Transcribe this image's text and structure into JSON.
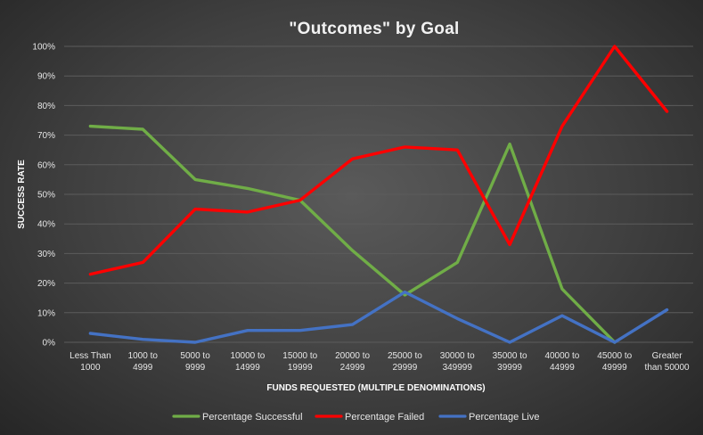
{
  "chart_data": {
    "type": "line",
    "title": "\"Outcomes\"  by Goal",
    "xlabel": "FUNDS REQUESTED (MULTIPLE DENOMINATIONS)",
    "ylabel": "SUCCESS RATE",
    "ylim": [
      0,
      100
    ],
    "y_ticks": [
      "0%",
      "10%",
      "20%",
      "30%",
      "40%",
      "50%",
      "60%",
      "70%",
      "80%",
      "90%",
      "100%"
    ],
    "grid": true,
    "legend_position": "bottom",
    "categories": [
      [
        "Less Than",
        "1000"
      ],
      [
        "1000 to",
        "4999"
      ],
      [
        "5000 to",
        "9999"
      ],
      [
        "10000 to",
        "14999"
      ],
      [
        "15000 to",
        "19999"
      ],
      [
        "20000 to",
        "24999"
      ],
      [
        "25000 to",
        "29999"
      ],
      [
        "30000 to",
        "349999"
      ],
      [
        "35000 to",
        "39999"
      ],
      [
        "40000 to",
        "44999"
      ],
      [
        "45000 to",
        "49999"
      ],
      [
        "Greater",
        "than 50000"
      ]
    ],
    "series": [
      {
        "name": "Percentage Successful",
        "color": "#70ad47",
        "values": [
          73,
          72,
          55,
          52,
          48,
          31,
          16,
          27,
          67,
          18,
          0,
          null
        ]
      },
      {
        "name": "Percentage Failed",
        "color": "#ff0000",
        "values": [
          23,
          27,
          45,
          44,
          48,
          62,
          66,
          65,
          33,
          73,
          100,
          78
        ]
      },
      {
        "name": "Percentage Live",
        "color": "#4472c4",
        "values": [
          3,
          1,
          0,
          4,
          4,
          6,
          17,
          8,
          0,
          9,
          0,
          11
        ]
      }
    ]
  }
}
